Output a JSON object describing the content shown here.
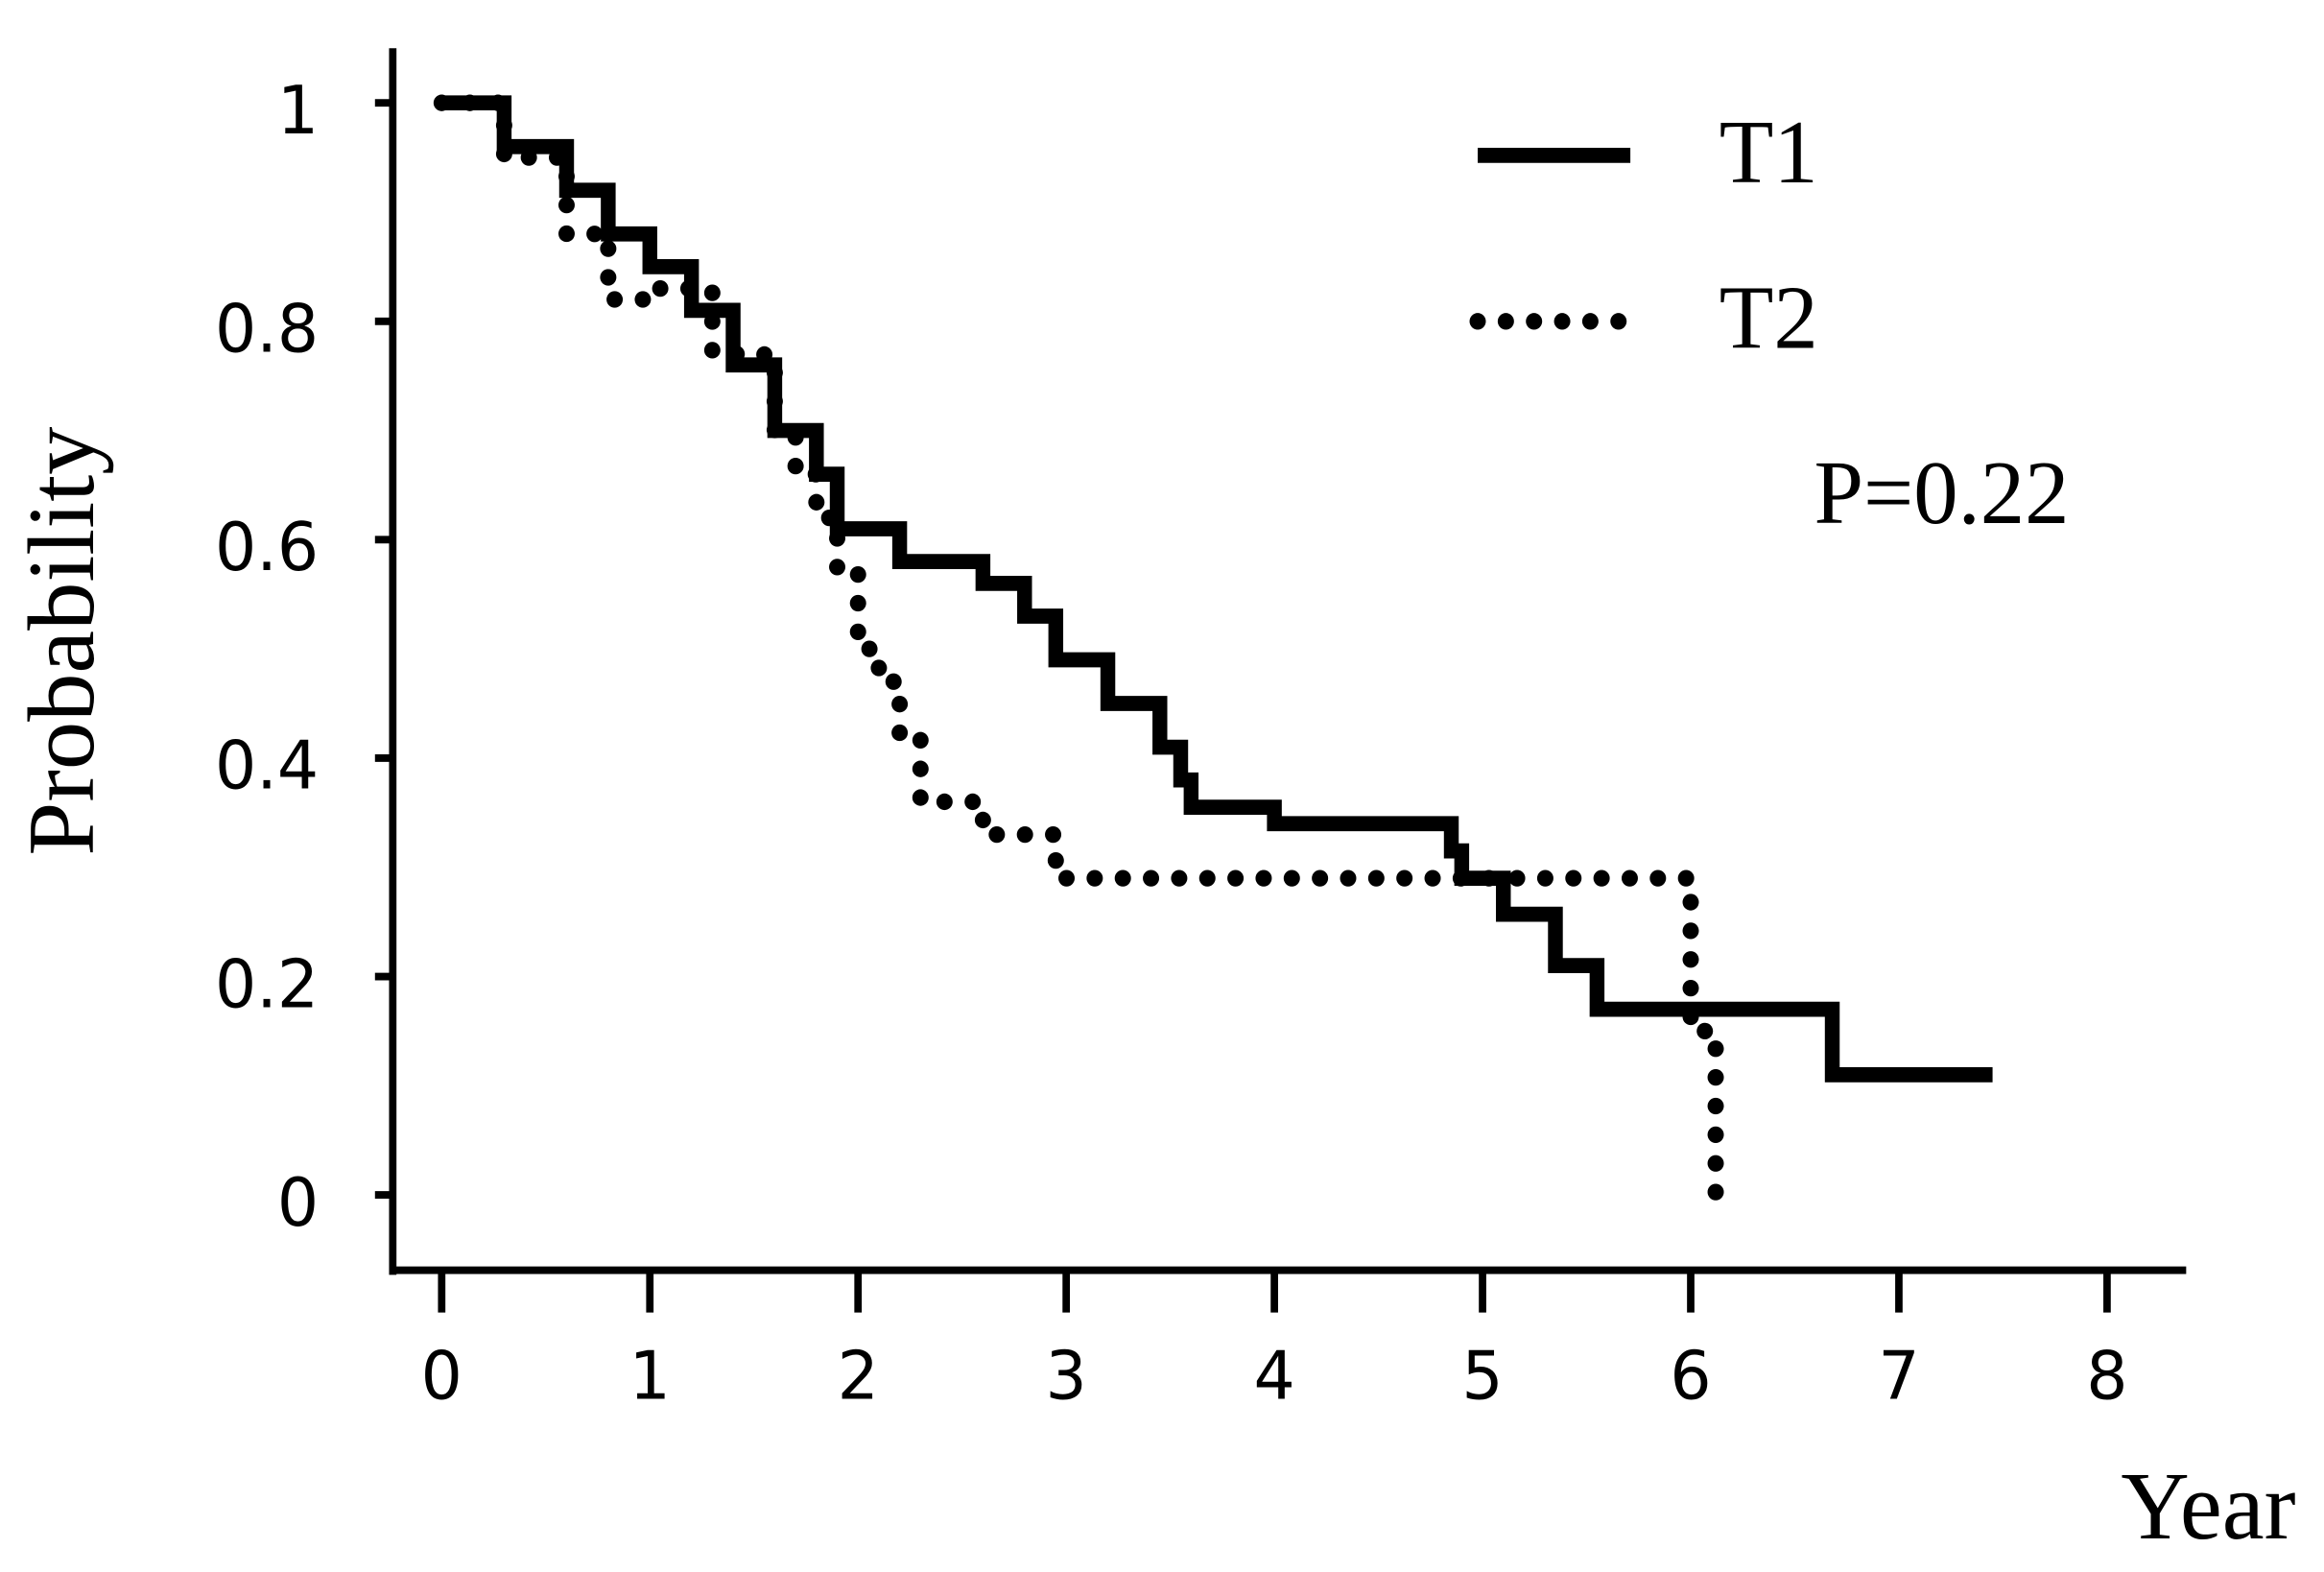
{
  "chart_data": {
    "type": "step",
    "xlabel": "Year",
    "ylabel": "Probability",
    "annotation": "P=0.22",
    "xlim": [
      -0.235,
      8.38
    ],
    "ylim": [
      -0.069,
      1.05
    ],
    "xticks": [
      0,
      1,
      2,
      3,
      4,
      5,
      6,
      7,
      8
    ],
    "yticks": [
      0,
      0.2,
      0.4,
      0.6,
      0.8,
      1
    ],
    "legend": "upper right",
    "series": [
      {
        "name": "T1",
        "color": "#000000",
        "style": "solid",
        "x": [
          0,
          0.3,
          0.6,
          0.8,
          1.0,
          1.2,
          1.4,
          1.6,
          1.8,
          1.9,
          2.2,
          2.6,
          2.8,
          2.95,
          3.2,
          3.45,
          3.55,
          3.6,
          4.0,
          4.85,
          4.9,
          5.1,
          5.35,
          5.55,
          6.68,
          7.45
        ],
        "values": [
          1,
          0.96,
          0.92,
          0.88,
          0.85,
          0.81,
          0.76,
          0.7,
          0.66,
          0.61,
          0.58,
          0.56,
          0.53,
          0.49,
          0.45,
          0.41,
          0.38,
          0.355,
          0.34,
          0.315,
          0.29,
          0.257,
          0.21,
          0.17,
          0.11,
          0.11
        ]
      },
      {
        "name": "T2",
        "color": "#000000",
        "style": "dotted",
        "x": [
          0,
          0.3,
          0.6,
          0.8,
          1.0,
          1.3,
          1.55,
          1.6,
          1.7,
          1.8,
          1.9,
          2.0,
          2.1,
          2.2,
          2.3,
          2.6,
          2.95,
          5.98,
          6.0,
          6.12,
          6.12
        ],
        "values": [
          1,
          0.95,
          0.88,
          0.82,
          0.83,
          0.77,
          0.76,
          0.7,
          0.66,
          0.62,
          0.57,
          0.5,
          0.47,
          0.42,
          0.36,
          0.33,
          0.29,
          0.29,
          0.15,
          0.15,
          0.0
        ]
      }
    ]
  }
}
